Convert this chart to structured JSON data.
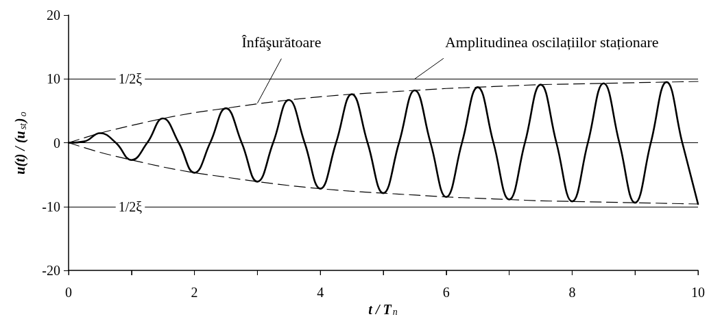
{
  "chart_data": {
    "type": "line",
    "xlabel": "t / T$_{n}$",
    "ylabel": "u(t) / (u$_{st}$)$_{o}$",
    "xlim": [
      0,
      10
    ],
    "xticks": [
      0,
      {
        "value": 1,
        "label": null
      },
      2,
      {
        "value": 3,
        "label": null
      },
      4,
      {
        "value": 5,
        "label": null
      },
      6,
      {
        "value": 7,
        "label": null
      },
      8,
      {
        "value": 9,
        "label": null
      },
      10
    ],
    "ylim": [
      -20,
      20
    ],
    "yticks": [
      -20,
      -10,
      0,
      10,
      20
    ],
    "grid": false,
    "marker": "none",
    "series": [
      {
        "color": "#000000",
        "line_style": "solid",
        "x": [
          0,
          0.25,
          0.5,
          0.75,
          1,
          1.25,
          1.5,
          1.75,
          2,
          2.25,
          2.5,
          2.75,
          3,
          3.25,
          3.5,
          3.75,
          4,
          4.25,
          4.5,
          4.75,
          5,
          5.25,
          5.5,
          5.75,
          6,
          6.25,
          6.5,
          6.75,
          7,
          7.25,
          7.5,
          7.75,
          8,
          8.25,
          8.5,
          8.75,
          9,
          9.25,
          9.5,
          9.75,
          10
        ],
        "values": [
          0,
          0.2,
          1.5,
          0,
          -2.7,
          0,
          3.8,
          0,
          -4.7,
          0,
          5.4,
          0,
          -6.1,
          0,
          6.7,
          0,
          -7.2,
          0,
          7.6,
          0,
          -7.9,
          0,
          8.2,
          0,
          -8.5,
          0,
          8.7,
          0,
          -8.9,
          0,
          9.1,
          0,
          -9.2,
          0,
          9.3,
          0,
          -9.4,
          0,
          9.5,
          0,
          -9.6
        ]
      },
      {
        "color": "#000000",
        "line_style": "dashed",
        "x": [
          0,
          0.5,
          1,
          1.5,
          2,
          2.5,
          3,
          3.5,
          4,
          4.5,
          5,
          5.5,
          6,
          6.5,
          7,
          7.5,
          8,
          8.5,
          9,
          9.5,
          10
        ],
        "values": [
          0,
          1.5,
          2.7,
          3.8,
          4.7,
          5.4,
          6.1,
          6.7,
          7.2,
          7.6,
          7.9,
          8.2,
          8.5,
          8.7,
          8.9,
          9.1,
          9.2,
          9.3,
          9.4,
          9.5,
          9.6
        ]
      },
      {
        "color": "#000000",
        "line_style": "dashed",
        "x": [
          0,
          0.5,
          1,
          1.5,
          2,
          2.5,
          3,
          3.5,
          4,
          4.5,
          5,
          5.5,
          6,
          6.5,
          7,
          7.5,
          8,
          8.5,
          9,
          9.5,
          10
        ],
        "values": [
          0,
          -1.5,
          -2.7,
          -3.8,
          -4.7,
          -5.4,
          -6.1,
          -6.7,
          -7.2,
          -7.6,
          -7.9,
          -8.2,
          -8.5,
          -8.7,
          -8.9,
          -9.1,
          -9.2,
          -9.3,
          -9.4,
          -9.5,
          -9.6
        ]
      }
    ],
    "ref_lines": [
      {
        "axis": "y",
        "value": 10,
        "label": "1/2ξ"
      },
      {
        "axis": "y",
        "value": -10,
        "label": "1/2ξ"
      },
      {
        "axis": "y",
        "value": 0,
        "label": null
      }
    ],
    "annotations": [
      {
        "text": "Înfăşurătoare",
        "x": 3.0,
        "y": 6.2
      },
      {
        "text": "Amplitudinea oscilațiilor staționare",
        "x": 5.5,
        "y": 10
      }
    ]
  }
}
